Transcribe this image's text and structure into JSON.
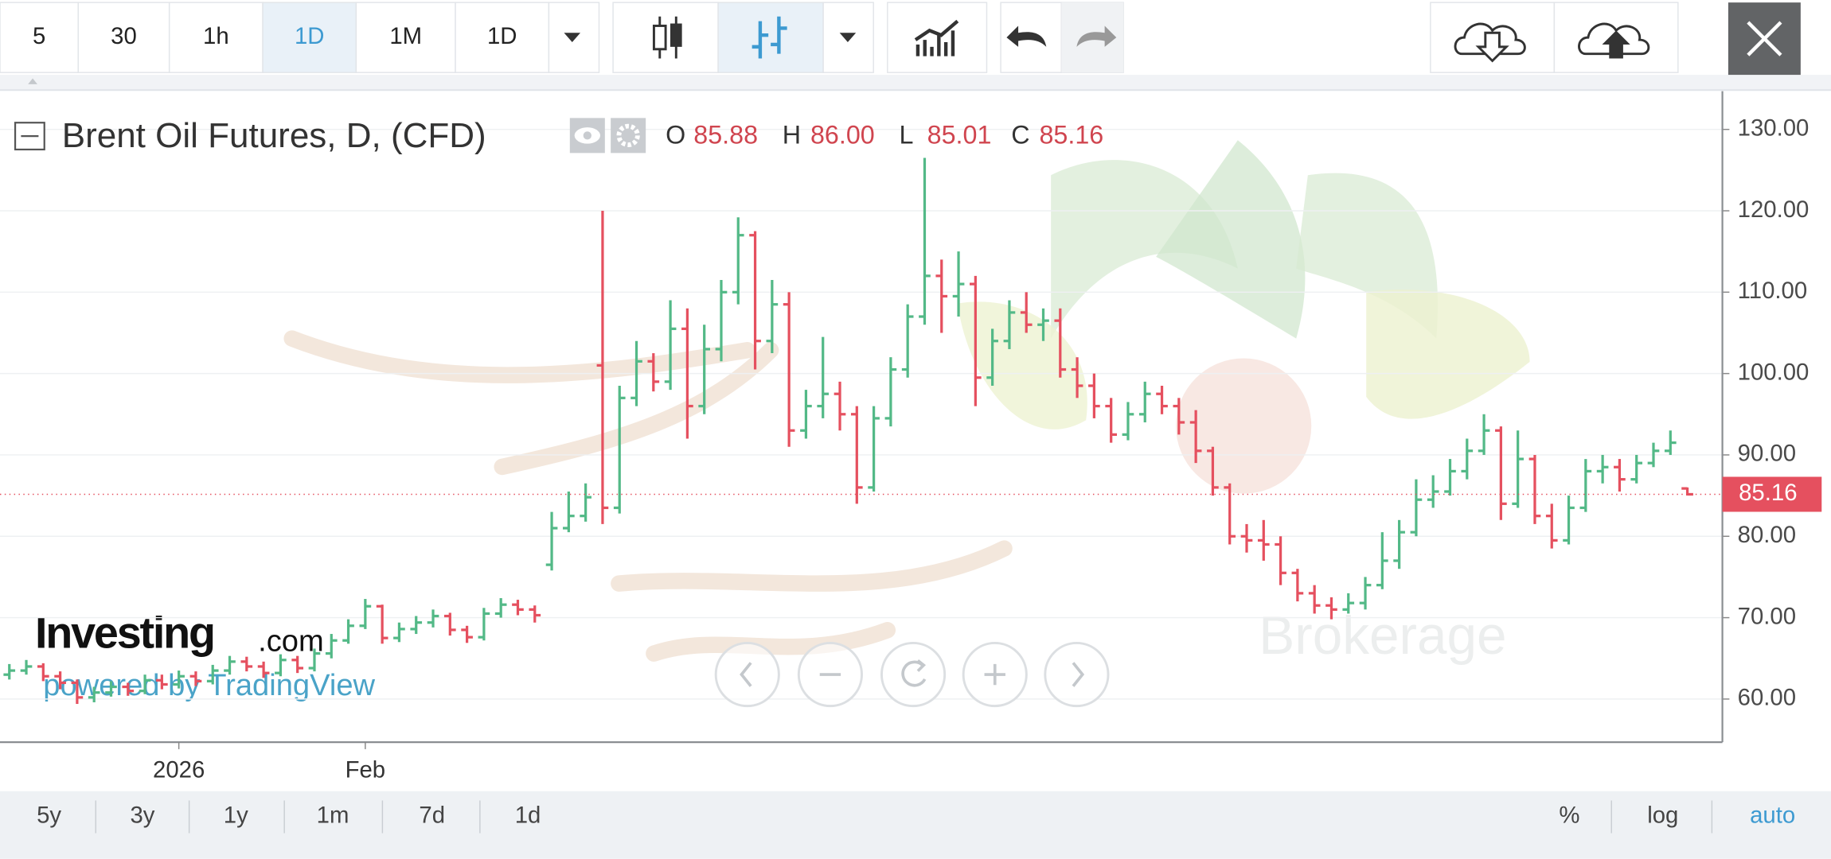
{
  "toolbar": {
    "intervals": [
      "5",
      "30",
      "1h",
      "1D",
      "1M",
      "1D"
    ]
  },
  "chart_data": {
    "type": "ohlc",
    "title": "Brent Oil Futures, D, (CFD)",
    "legend_keys": {
      "open": "O",
      "high": "H",
      "low": "L",
      "close": "C"
    },
    "legend_values": {
      "open": "85.88",
      "high": "86.00",
      "low": "85.01",
      "close": "85.16"
    },
    "last_price_label": "85.16",
    "up_color": "#53b987",
    "down_color": "#e5505f",
    "categories": [
      null,
      null,
      null,
      null,
      null,
      null,
      null,
      null,
      null,
      null,
      "2026",
      null,
      null,
      null,
      null,
      null,
      null,
      null,
      null,
      null,
      null,
      "Feb",
      null,
      null,
      null,
      null,
      null,
      null,
      null,
      null,
      null,
      null,
      null,
      null,
      null,
      null,
      null,
      null,
      null,
      null,
      null,
      null,
      null,
      null,
      null,
      null,
      null,
      null,
      null,
      null,
      null,
      null,
      null,
      null,
      null,
      null,
      null,
      null,
      null,
      null,
      null,
      null,
      null,
      null,
      null,
      null,
      null,
      null,
      null,
      null,
      null,
      null,
      null,
      null,
      null,
      null,
      null,
      null,
      null,
      null,
      null,
      null,
      null,
      null,
      null,
      null,
      null,
      null,
      null,
      null,
      null,
      null,
      null,
      null,
      null,
      null,
      null,
      null,
      null,
      null
    ],
    "open": [
      63.0,
      63.5,
      64.0,
      62.8,
      62.0,
      60.2,
      60.8,
      61.5,
      61.0,
      62.3,
      61.8,
      62.8,
      62.2,
      63.5,
      64.6,
      64.0,
      63.2,
      64.8,
      63.8,
      65.6,
      67.2,
      69.0,
      71.4,
      67.5,
      68.6,
      69.4,
      70.2,
      68.5,
      67.6,
      70.5,
      71.6,
      71.0,
      76.5,
      81.0,
      82.5,
      101.0,
      83.5,
      97.0,
      101.5,
      99.0,
      105.5,
      96.0,
      103.0,
      110.0,
      117.0,
      104.0,
      108.5,
      93.0,
      96.0,
      97.5,
      95.0,
      86.0,
      94.5,
      100.5,
      107.0,
      112.0,
      109.5,
      111.0,
      99.5,
      104.0,
      107.5,
      106.0,
      106.5,
      100.5,
      98.5,
      96.0,
      92.5,
      95.0,
      97.5,
      96.0,
      94.0,
      90.5,
      86.0,
      80.0,
      79.5,
      79.0,
      75.5,
      73.0,
      71.5,
      71.0,
      71.8,
      74.0,
      77.0,
      80.5,
      84.5,
      85.5,
      88.0,
      90.5,
      93.0,
      84.0,
      89.5,
      82.5,
      79.5,
      83.5,
      88.0,
      88.5,
      87.0,
      89.0,
      90.5,
      85.88
    ],
    "high": [
      64.3,
      64.8,
      64.4,
      63.4,
      62.4,
      61.5,
      62.2,
      62.0,
      63.0,
      63.0,
      63.5,
      63.4,
      64.2,
      65.3,
      65.2,
      64.6,
      65.5,
      65.3,
      66.2,
      68.0,
      69.8,
      72.3,
      71.6,
      69.4,
      70.2,
      71.0,
      70.6,
      69.0,
      71.2,
      72.4,
      72.2,
      71.5,
      83.0,
      85.5,
      86.5,
      120.0,
      98.5,
      104.0,
      102.5,
      109.0,
      108.0,
      106.0,
      111.5,
      119.2,
      117.5,
      111.5,
      110.0,
      98.0,
      104.5,
      99.0,
      96.0,
      96.0,
      102.0,
      108.5,
      126.5,
      114.0,
      115.0,
      112.0,
      105.5,
      109.0,
      110.0,
      108.0,
      108.0,
      102.0,
      100.0,
      97.0,
      96.5,
      99.0,
      98.5,
      97.0,
      95.5,
      91.0,
      86.5,
      81.5,
      82.0,
      80.0,
      76.0,
      74.0,
      72.5,
      73.0,
      75.0,
      80.5,
      82.0,
      87.0,
      87.5,
      89.5,
      92.0,
      95.0,
      93.5,
      93.0,
      90.0,
      84.0,
      85.0,
      89.5,
      90.0,
      89.5,
      90.0,
      91.5,
      93.0,
      86.0
    ],
    "low": [
      62.4,
      63.0,
      62.2,
      61.2,
      59.4,
      59.6,
      60.3,
      60.4,
      60.6,
      61.2,
      61.3,
      61.6,
      61.8,
      63.0,
      63.4,
      62.6,
      62.8,
      63.2,
      63.4,
      65.0,
      66.8,
      68.6,
      66.8,
      67.0,
      68.0,
      68.8,
      67.8,
      66.9,
      67.2,
      70.0,
      70.3,
      69.4,
      75.8,
      80.5,
      81.8,
      81.5,
      82.8,
      96.0,
      97.8,
      98.0,
      92.0,
      95.0,
      101.5,
      108.5,
      100.5,
      102.5,
      91.0,
      92.0,
      94.5,
      93.0,
      84.0,
      85.5,
      93.5,
      99.5,
      106.0,
      105.0,
      107.0,
      96.0,
      98.5,
      103.0,
      105.0,
      104.0,
      99.5,
      97.0,
      94.5,
      91.5,
      91.8,
      94.0,
      95.0,
      92.5,
      89.0,
      85.0,
      79.0,
      78.0,
      77.0,
      74.0,
      72.0,
      70.5,
      69.8,
      70.5,
      71.0,
      73.5,
      76.0,
      80.0,
      83.5,
      85.0,
      87.0,
      90.0,
      82.0,
      83.5,
      81.5,
      78.5,
      79.0,
      83.0,
      86.5,
      85.5,
      86.5,
      88.5,
      90.0,
      85.01
    ],
    "close": [
      63.5,
      64.0,
      62.8,
      62.0,
      60.2,
      60.8,
      61.5,
      61.0,
      62.3,
      61.8,
      62.8,
      62.2,
      63.5,
      64.6,
      64.0,
      63.2,
      64.8,
      63.8,
      65.6,
      67.2,
      69.0,
      71.4,
      67.5,
      68.6,
      69.4,
      70.2,
      68.5,
      67.6,
      70.5,
      71.6,
      71.0,
      70.3,
      81.0,
      82.5,
      84.8,
      83.5,
      97.0,
      101.5,
      99.0,
      105.5,
      96.0,
      103.0,
      110.0,
      117.0,
      104.0,
      108.5,
      93.0,
      96.0,
      97.5,
      95.0,
      86.0,
      94.5,
      100.5,
      107.0,
      112.0,
      109.5,
      111.0,
      99.5,
      104.0,
      107.5,
      106.0,
      106.5,
      100.5,
      98.5,
      96.0,
      92.5,
      95.0,
      97.5,
      96.0,
      94.0,
      90.5,
      86.0,
      80.0,
      79.5,
      79.0,
      75.5,
      73.0,
      71.5,
      71.0,
      71.8,
      74.0,
      77.0,
      80.5,
      84.5,
      85.5,
      88.0,
      90.5,
      93.0,
      84.0,
      89.5,
      82.5,
      79.5,
      83.5,
      88.0,
      88.5,
      87.0,
      89.0,
      90.5,
      91.5,
      85.16
    ],
    "ylim": [
      54.7,
      134.7
    ],
    "yticks": [
      {
        "value": 60,
        "label": "60.00"
      },
      {
        "value": 70,
        "label": "70.00"
      },
      {
        "value": 80,
        "label": "80.00"
      },
      {
        "value": 90,
        "label": "90.00"
      },
      {
        "value": 100,
        "label": "100.00"
      },
      {
        "value": 110,
        "label": "110.00"
      },
      {
        "value": 120,
        "label": "120.00"
      },
      {
        "value": 130,
        "label": "130.00"
      }
    ],
    "grid": true
  },
  "watermark": {
    "brand": "Investing",
    "brand_suffix": ".com",
    "powered": "powered by TradingView",
    "broker": "Brokerage"
  },
  "bottom_bar": {
    "ranges": [
      "5y",
      "3y",
      "1y",
      "1m",
      "7d",
      "1d"
    ],
    "options": [
      "%",
      "log",
      "auto"
    ]
  }
}
